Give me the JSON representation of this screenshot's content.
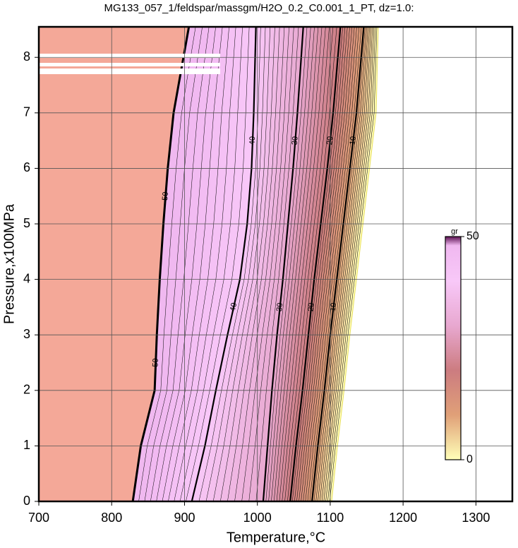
{
  "chart_data": {
    "type": "contour",
    "title": "MG133_057_1/feldspar/massgm/H2O_0.2_C0.001_1_PT, dz=1.0:",
    "x_label": "Temperature,°C",
    "y_label": "Pressure,x100MPa",
    "xlim": [
      700,
      1350
    ],
    "ylim": [
      0,
      8.55
    ],
    "xticks": [
      700,
      800,
      900,
      1000,
      1100,
      1200,
      1300
    ],
    "yticks": [
      0,
      1,
      2,
      3,
      4,
      5,
      6,
      7,
      8
    ],
    "grid": true,
    "below_color": "#f4a898",
    "contours": [
      {
        "level": 50,
        "x": [
          829,
          840,
          859,
          862,
          866,
          871,
          877,
          885,
          906
        ],
        "y": [
          0,
          1,
          2,
          3,
          4,
          5,
          6,
          7,
          8.55
        ]
      },
      {
        "level": 40,
        "x": [
          910,
          928,
          943,
          959,
          976,
          986,
          992,
          995,
          998
        ],
        "y": [
          0,
          1,
          2,
          3,
          4,
          5,
          6,
          7,
          8.55
        ]
      },
      {
        "level": 30,
        "x": [
          1008,
          1014,
          1020,
          1027,
          1035,
          1042,
          1049,
          1055,
          1063
        ],
        "y": [
          0,
          1,
          2,
          3,
          4,
          5,
          6,
          7,
          8.55
        ]
      },
      {
        "level": 20,
        "x": [
          1045,
          1053,
          1062,
          1070,
          1078,
          1087,
          1096,
          1104,
          1114
        ],
        "y": [
          0,
          1,
          2,
          3,
          4,
          5,
          6,
          7,
          8.55
        ]
      },
      {
        "level": 10,
        "x": [
          1075,
          1083,
          1092,
          1100,
          1109,
          1118,
          1127,
          1136,
          1146
        ],
        "y": [
          0,
          1,
          2,
          3,
          4,
          5,
          6,
          7,
          8.55
        ]
      },
      {
        "level": 0,
        "x": [
          1102,
          1110,
          1119,
          1127,
          1136,
          1145,
          1154,
          1163,
          1166
        ],
        "y": [
          0,
          1,
          2,
          3,
          4,
          5,
          6,
          7,
          8.55
        ]
      }
    ],
    "colorbar": {
      "label": "gr",
      "lim": [
        0,
        50
      ],
      "ticks": [
        0,
        50
      ],
      "colormap": [
        {
          "value": 0,
          "color": "#ffffb8"
        },
        {
          "value": 10,
          "color": "#e0a078"
        },
        {
          "value": 20,
          "color": "#cc7c80"
        },
        {
          "value": 30,
          "color": "#e8a8d0"
        },
        {
          "value": 40,
          "color": "#f8c8f8"
        },
        {
          "value": 48,
          "color": "#f0b8f0"
        },
        {
          "value": 50,
          "color": "#5a1050"
        }
      ]
    }
  }
}
